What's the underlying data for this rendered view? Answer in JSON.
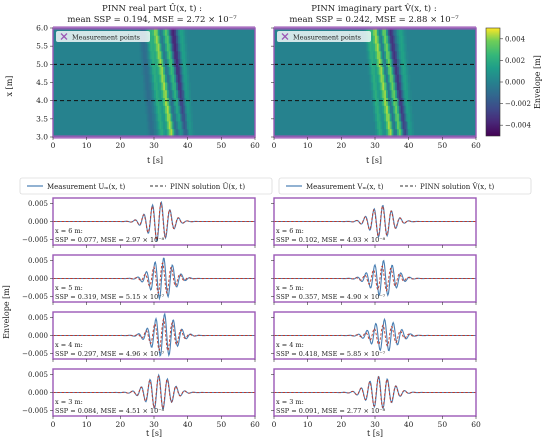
{
  "heatmaps": [
    {
      "title_line1": "PINN real part Û(x, t) :",
      "title_line2": "mean SSP = 0.194, MSE = 2.72 × 10⁻⁷",
      "legend": "Measurement points",
      "ylabel": "x [m]",
      "xlabel": "t [s]"
    },
    {
      "title_line1": "PINN imaginary part V̂(x, t) :",
      "title_line2": "mean SSP = 0.242, MSE = 2.88 × 10⁻⁷",
      "legend": "Measurement points",
      "ylabel": "",
      "xlabel": "t [s]"
    }
  ],
  "colorbar": {
    "label": "Envelope [m]",
    "ticks": [
      "0.004",
      "0.002",
      "0.000",
      "−0.002",
      "−0.004"
    ]
  },
  "legends": {
    "left_measurement": "Measurement Uₘ(x, t)",
    "left_pinn": "PINN solution Û(x, t)",
    "right_measurement": "Measurement Vₘ(x, t)",
    "right_pinn": "PINN solution V̂(x, t)"
  },
  "line_ylabel": "Envelope [m]",
  "colors": {
    "measurement": "#4a7fb3",
    "pinn": "#c0392b",
    "frame": "#9b59b6",
    "measurement_points": "#9b59b6"
  },
  "chart_data": [
    {
      "type": "heatmap",
      "name": "real part",
      "x_range": [
        0,
        60
      ],
      "y_range": [
        3.0,
        6.0
      ],
      "x_ticks": [
        "0",
        "10",
        "20",
        "30",
        "40",
        "50",
        "60"
      ],
      "y_ticks": [
        "3.0",
        "3.5",
        "4.0",
        "4.5",
        "5.0",
        "5.5",
        "6.0"
      ],
      "measurement_points_x": [
        3.0,
        4.0,
        5.0,
        6.0
      ],
      "value_range": [
        -0.005,
        0.005
      ],
      "bands": [
        {
          "t_at_x6": 30.5,
          "slope": 1.6,
          "amp": 0.0045,
          "width": 1.1
        },
        {
          "t_at_x6": 31.5,
          "slope": 1.7,
          "amp": -0.002,
          "width": 0.8
        },
        {
          "t_at_x6": 33.5,
          "slope": 1.7,
          "amp": 0.0035,
          "width": 1.0
        },
        {
          "t_at_x6": 35.5,
          "slope": 1.2,
          "amp": -0.004,
          "width": 1.2
        },
        {
          "t_at_x6": 38.0,
          "slope": 0.8,
          "amp": 0.0015,
          "width": 1.0
        },
        {
          "t_at_x6": 28.5,
          "slope": 1.3,
          "amp": 0.002,
          "width": 0.9
        },
        {
          "t_at_x6": 26.5,
          "slope": 1.0,
          "amp": -0.001,
          "width": 1.0
        }
      ]
    },
    {
      "type": "heatmap",
      "name": "imaginary part",
      "x_range": [
        0,
        60
      ],
      "y_range": [
        3.0,
        6.0
      ],
      "x_ticks": [
        "0",
        "10",
        "20",
        "30",
        "40",
        "50",
        "60"
      ],
      "y_ticks": [
        "3.0",
        "3.5",
        "4.0",
        "4.5",
        "5.0",
        "5.5",
        "6.0"
      ],
      "measurement_points_x": [
        3.0,
        4.0,
        5.0,
        6.0
      ],
      "value_range": [
        -0.005,
        0.005
      ],
      "bands": [
        {
          "t_at_x6": 30.0,
          "slope": 1.6,
          "amp": 0.0045,
          "width": 1.1
        },
        {
          "t_at_x6": 32.5,
          "slope": 1.7,
          "amp": 0.004,
          "width": 1.0
        },
        {
          "t_at_x6": 34.5,
          "slope": 1.5,
          "amp": -0.0035,
          "width": 1.0
        },
        {
          "t_at_x6": 31.2,
          "slope": 1.6,
          "amp": -0.0025,
          "width": 0.8
        },
        {
          "t_at_x6": 37.5,
          "slope": 0.9,
          "amp": 0.0015,
          "width": 1.0
        },
        {
          "t_at_x6": 28.0,
          "slope": 1.2,
          "amp": 0.002,
          "width": 0.9
        }
      ]
    },
    {
      "type": "line",
      "column": "left",
      "x_range": [
        0,
        60
      ],
      "y_range": [
        -0.0065,
        0.0065
      ],
      "x_ticks": [
        "0",
        "10",
        "20",
        "30",
        "40",
        "50",
        "60"
      ],
      "y_ticks": [
        "0.005",
        "0.000",
        "−0.005"
      ],
      "panels": [
        {
          "x_m": 6,
          "x_label": "x = 6 m:",
          "metrics": "SSP = 0.077, MSE = 2.97 × 10⁻⁸",
          "center": 31.5,
          "spread": 4.5,
          "amp": 0.0055,
          "period": 2.6,
          "phase": 0.0,
          "pinn_scale": 0.95,
          "pinn_shift": 0.2
        },
        {
          "x_m": 5,
          "x_label": "x = 5 m:",
          "metrics": "SSP = 0.319, MSE = 5.15 × 10⁻⁷",
          "center": 32.5,
          "spread": 4.5,
          "amp": 0.0058,
          "period": 2.6,
          "phase": 0.6,
          "pinn_scale": 0.75,
          "pinn_shift": 0.9
        },
        {
          "x_m": 4,
          "x_label": "x = 4 m:",
          "metrics": "SSP = 0.297, MSE = 4.96 × 10⁻⁷",
          "center": 33.0,
          "spread": 4.8,
          "amp": 0.006,
          "period": 2.6,
          "phase": 1.2,
          "pinn_scale": 0.75,
          "pinn_shift": 0.8
        },
        {
          "x_m": 3,
          "x_label": "x = 3 m:",
          "metrics": "SSP = 0.084, MSE = 4.51 × 10⁻⁸",
          "center": 31.5,
          "spread": 5.0,
          "amp": 0.0048,
          "period": 2.6,
          "phase": 1.8,
          "pinn_scale": 0.95,
          "pinn_shift": 0.2
        }
      ]
    },
    {
      "type": "line",
      "column": "right",
      "x_range": [
        0,
        60
      ],
      "y_range": [
        -0.0065,
        0.0065
      ],
      "x_ticks": [
        "0",
        "10",
        "20",
        "30",
        "40",
        "50",
        "60"
      ],
      "y_ticks": [],
      "panels": [
        {
          "x_m": 6,
          "x_label": "x = 6 m:",
          "metrics": "SSP = 0.102, MSE = 4.93 × 10⁻⁸",
          "center": 32.0,
          "spread": 4.5,
          "amp": 0.0045,
          "period": 2.6,
          "phase": 0.8,
          "pinn_scale": 0.95,
          "pinn_shift": 0.2
        },
        {
          "x_m": 5,
          "x_label": "x = 5 m:",
          "metrics": "SSP = 0.357, MSE = 4.90 × 10⁻⁷",
          "center": 32.5,
          "spread": 4.8,
          "amp": 0.005,
          "period": 2.6,
          "phase": 1.5,
          "pinn_scale": 0.7,
          "pinn_shift": 1.0
        },
        {
          "x_m": 4,
          "x_label": "x = 4 m:",
          "metrics": "SSP = 0.418, MSE = 5.85 × 10⁻⁷",
          "center": 33.0,
          "spread": 5.0,
          "amp": 0.0045,
          "period": 2.6,
          "phase": 2.0,
          "pinn_scale": 0.65,
          "pinn_shift": 1.1
        },
        {
          "x_m": 3,
          "x_label": "x = 3 m:",
          "metrics": "SSP = 0.091, MSE = 2.77 × 10⁻⁸",
          "center": 31.5,
          "spread": 5.0,
          "amp": 0.0045,
          "period": 2.6,
          "phase": 2.6,
          "pinn_scale": 0.95,
          "pinn_shift": 0.2
        }
      ]
    }
  ]
}
